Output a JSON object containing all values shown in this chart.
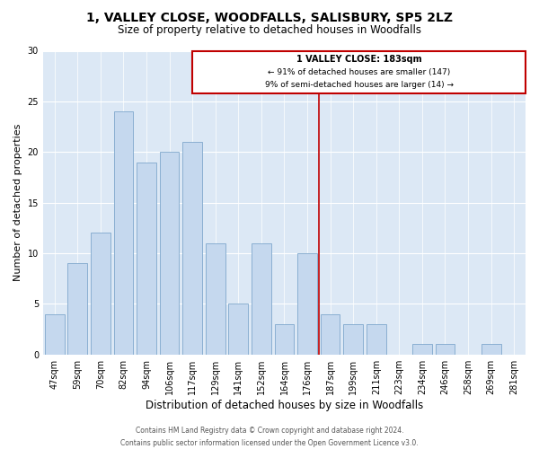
{
  "title": "1, VALLEY CLOSE, WOODFALLS, SALISBURY, SP5 2LZ",
  "subtitle": "Size of property relative to detached houses in Woodfalls",
  "xlabel": "Distribution of detached houses by size in Woodfalls",
  "ylabel": "Number of detached properties",
  "categories": [
    "47sqm",
    "59sqm",
    "70sqm",
    "82sqm",
    "94sqm",
    "106sqm",
    "117sqm",
    "129sqm",
    "141sqm",
    "152sqm",
    "164sqm",
    "176sqm",
    "187sqm",
    "199sqm",
    "211sqm",
    "223sqm",
    "234sqm",
    "246sqm",
    "258sqm",
    "269sqm",
    "281sqm"
  ],
  "values": [
    4,
    9,
    12,
    24,
    19,
    20,
    21,
    11,
    5,
    11,
    3,
    10,
    4,
    3,
    3,
    0,
    1,
    1,
    0,
    1,
    0
  ],
  "bar_color": "#c5d8ee",
  "bar_edge_color": "#7fa8cc",
  "reference_line_color": "#c00000",
  "annotation_title": "1 VALLEY CLOSE: 183sqm",
  "annotation_line1": "← 91% of detached houses are smaller (147)",
  "annotation_line2": "9% of semi-detached houses are larger (14) →",
  "annotation_box_color": "#c00000",
  "footer_line1": "Contains HM Land Registry data © Crown copyright and database right 2024.",
  "footer_line2": "Contains public sector information licensed under the Open Government Licence v3.0.",
  "ylim": [
    0,
    30
  ],
  "yticks": [
    0,
    5,
    10,
    15,
    20,
    25,
    30
  ],
  "background_color": "#dce8f5",
  "grid_color": "#ffffff",
  "title_fontsize": 10,
  "subtitle_fontsize": 8.5,
  "xlabel_fontsize": 8.5,
  "ylabel_fontsize": 8,
  "tick_fontsize": 7,
  "footer_fontsize": 5.5
}
